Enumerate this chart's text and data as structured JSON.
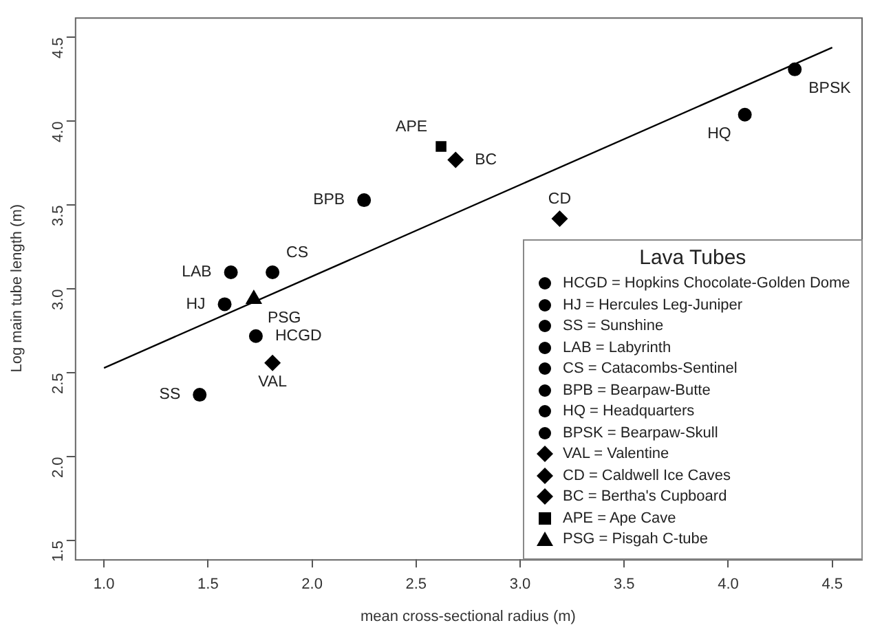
{
  "chart_data": {
    "type": "scatter",
    "xlabel": "mean cross-sectional radius (m)",
    "ylabel": "Log main tube length (m)",
    "legend_title": "Lava Tubes",
    "legend": "bottom right",
    "xlim": [
      0.86,
      4.64
    ],
    "ylim": [
      1.39,
      4.62
    ],
    "xticks": [
      {
        "value": 1,
        "label": "1.0"
      },
      1.5,
      {
        "value": 2,
        "label": "2.0"
      },
      2.5,
      {
        "value": 3,
        "label": "3.0"
      },
      3.5,
      {
        "value": 4,
        "label": "4.0"
      },
      4.5
    ],
    "yticks": [
      1.5,
      {
        "value": 2,
        "label": "2.0"
      },
      2.5,
      {
        "value": 3,
        "label": "3.0"
      },
      3.5,
      {
        "value": 4,
        "label": "4.0"
      },
      4.5
    ],
    "series": [
      {
        "name": "HCGD = Hopkins Chocolate-Golden Dome",
        "color": "#000000",
        "marker": "circle",
        "x": [
          1.73
        ],
        "values": [
          2.72
        ]
      },
      {
        "name": "HJ = Hercules Leg-Juniper",
        "color": "#000000",
        "marker": "circle",
        "x": [
          1.58
        ],
        "values": [
          2.91
        ]
      },
      {
        "name": "SS = Sunshine",
        "color": "#000000",
        "marker": "circle",
        "x": [
          1.46
        ],
        "values": [
          2.37
        ]
      },
      {
        "name": "LAB = Labyrinth",
        "color": "#000000",
        "marker": "circle",
        "x": [
          1.61
        ],
        "values": [
          3.1
        ]
      },
      {
        "name": "CS = Catacombs-Sentinel",
        "color": "#000000",
        "marker": "circle",
        "x": [
          1.81
        ],
        "values": [
          3.1
        ]
      },
      {
        "name": "BPB = Bearpaw-Butte",
        "color": "#000000",
        "marker": "circle",
        "x": [
          2.25
        ],
        "values": [
          3.53
        ]
      },
      {
        "name": "HQ = Headquarters",
        "color": "#000000",
        "marker": "circle",
        "x": [
          4.08
        ],
        "values": [
          4.04
        ]
      },
      {
        "name": "BPSK = Bearpaw-Skull",
        "color": "#000000",
        "marker": "circle",
        "x": [
          4.32
        ],
        "values": [
          4.31
        ]
      },
      {
        "name": "VAL = Valentine",
        "color": "#000000",
        "marker": "diamond",
        "x": [
          1.81
        ],
        "values": [
          2.56
        ]
      },
      {
        "name": "CD = Caldwell Ice Caves",
        "color": "#000000",
        "marker": "diamond",
        "x": [
          3.19
        ],
        "values": [
          3.42
        ]
      },
      {
        "name": "BC = Bertha's Cupboard",
        "color": "#000000",
        "marker": "diamond",
        "x": [
          2.69
        ],
        "values": [
          3.77
        ]
      },
      {
        "name": "APE = Ape Cave",
        "color": "#000000",
        "marker": "square",
        "x": [
          2.62
        ],
        "values": [
          3.85
        ]
      },
      {
        "name": "PSG = Pisgah C-tube",
        "color": "#000000",
        "marker": "triangle",
        "x": [
          1.72
        ],
        "values": [
          2.94
        ]
      },
      {
        "type": "line",
        "color": "#000000",
        "marker": "none",
        "line_style": "solid",
        "x": [
          1.0,
          4.5
        ],
        "values": [
          2.53,
          4.44
        ]
      }
    ],
    "annotations": [
      {
        "text": "HCGD",
        "x": 1.73,
        "y": 2.72
      },
      {
        "text": "HJ",
        "x": 1.58,
        "y": 2.91
      },
      {
        "text": "SS",
        "x": 1.46,
        "y": 2.37
      },
      {
        "text": "LAB",
        "x": 1.61,
        "y": 3.1
      },
      {
        "text": "CS",
        "x": 1.81,
        "y": 3.1
      },
      {
        "text": "BPB",
        "x": 2.25,
        "y": 3.53
      },
      {
        "text": "HQ",
        "x": 4.08,
        "y": 4.04
      },
      {
        "text": "BPSK",
        "x": 4.32,
        "y": 4.31
      },
      {
        "text": "VAL",
        "x": 1.81,
        "y": 2.56
      },
      {
        "text": "CD",
        "x": 3.19,
        "y": 3.42
      },
      {
        "text": "BC",
        "x": 2.69,
        "y": 3.77
      },
      {
        "text": "APE",
        "x": 2.62,
        "y": 3.85
      },
      {
        "text": "PSG",
        "x": 1.72,
        "y": 2.94
      }
    ]
  }
}
